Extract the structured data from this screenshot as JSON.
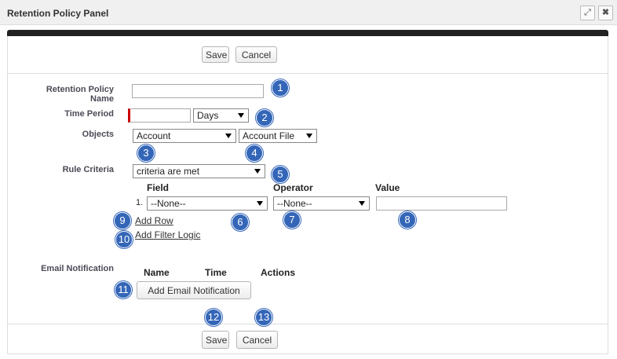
{
  "header": {
    "title": "Retention Policy Panel"
  },
  "top_buttons": [
    "Save",
    "Cancel"
  ],
  "form": {
    "policy_name": {
      "label": "Retention Policy Name"
    },
    "time_period": {
      "label": "Time Period",
      "unit": "Days"
    },
    "objects": {
      "label": "Objects",
      "object": "Account",
      "file_type": "Account File"
    },
    "rule_criteria": {
      "label": "Rule Criteria",
      "mode": "criteria are met",
      "columns": [
        "Field",
        "Operator",
        "Value"
      ],
      "rows": [
        {
          "number": "1.",
          "field": "--None--",
          "operator": "--None--"
        }
      ],
      "links": [
        "Add Row",
        "Add Filter Logic"
      ]
    },
    "email_notification": {
      "label": "Email Notification",
      "columns": [
        "Name",
        "Time",
        "Actions"
      ],
      "button": "Add Email Notification"
    }
  },
  "bottom_buttons": [
    "Save",
    "Cancel"
  ],
  "badges": [
    1,
    2,
    3,
    4,
    5,
    6,
    7,
    8,
    9,
    10,
    11,
    12,
    13
  ]
}
